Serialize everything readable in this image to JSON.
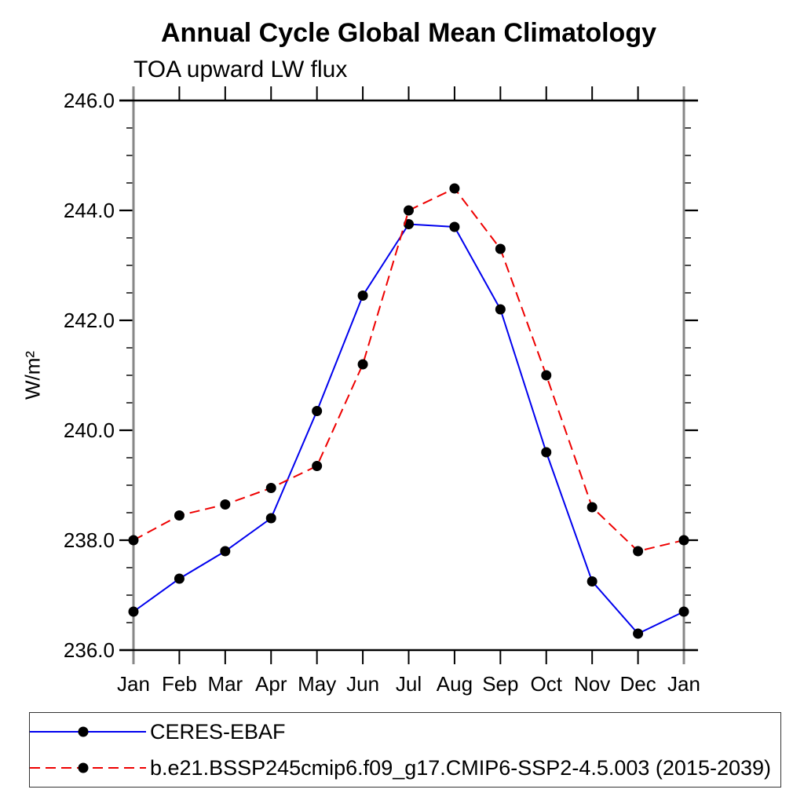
{
  "page": {
    "title": "Annual Cycle Global Mean Climatology",
    "subtitle": "TOA upward LW flux"
  },
  "chart_data": {
    "type": "line",
    "title": "Annual Cycle Global Mean Climatology",
    "subtitle": "TOA upward LW flux",
    "xlabel": "",
    "ylabel": "W/m²",
    "x_categories": [
      "Jan",
      "Feb",
      "Mar",
      "Apr",
      "May",
      "Jun",
      "Jul",
      "Aug",
      "Sep",
      "Oct",
      "Nov",
      "Dec",
      "Jan"
    ],
    "ylim": [
      236.0,
      246.0
    ],
    "ytick_major_interval": 2.0,
    "ytick_minor_interval": 0.5,
    "ytick_labels": [
      "246.0",
      "244.0",
      "242.0",
      "240.0",
      "238.0",
      "236.0"
    ],
    "grid": false,
    "legend_position": "bottom",
    "colors": {
      "axis_vertical": "#878787",
      "axis_horizontal": "#000000",
      "marker": "#000000",
      "series1": "#0000ee",
      "series2": "#ee0000"
    },
    "series": [
      {
        "name": "CERES-EBAF",
        "color": "#0000ee",
        "line_style": "solid",
        "marker": "circle",
        "marker_color": "#000000",
        "values": [
          236.7,
          237.3,
          237.8,
          238.4,
          240.35,
          242.45,
          243.75,
          243.7,
          242.2,
          239.6,
          237.25,
          236.3,
          236.7
        ]
      },
      {
        "name": "b.e21.BSSP245cmip6.f09_g17.CMIP6-SSP2-4.5.003 (2015-2039)",
        "color": "#ee0000",
        "line_style": "dashed",
        "marker": "circle",
        "marker_color": "#000000",
        "values": [
          238.0,
          238.45,
          238.65,
          238.95,
          239.35,
          241.2,
          244.0,
          244.4,
          243.3,
          241.0,
          238.6,
          237.8,
          238.0
        ]
      }
    ]
  }
}
